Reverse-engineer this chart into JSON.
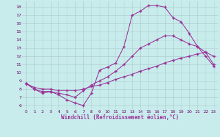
{
  "xlabel": "Windchill (Refroidissement éolien,°C)",
  "bg_color": "#c8ecec",
  "line_color": "#993399",
  "grid_color": "#b0cece",
  "xlim": [
    -0.5,
    23.5
  ],
  "ylim": [
    5.5,
    18.7
  ],
  "xticks": [
    0,
    1,
    2,
    3,
    4,
    5,
    6,
    7,
    8,
    9,
    10,
    11,
    12,
    13,
    14,
    15,
    16,
    17,
    18,
    19,
    20,
    21,
    22,
    23
  ],
  "yticks": [
    6,
    7,
    8,
    9,
    10,
    11,
    12,
    13,
    14,
    15,
    16,
    17,
    18
  ],
  "line1": {
    "x": [
      0,
      1,
      2,
      3,
      4,
      5,
      6,
      7,
      8,
      9,
      10,
      11,
      12,
      13,
      14,
      15,
      16,
      17,
      18,
      19,
      20,
      21,
      22,
      23
    ],
    "y": [
      8.7,
      8.0,
      7.5,
      7.7,
      7.3,
      6.7,
      6.3,
      6.0,
      7.5,
      10.3,
      10.7,
      11.2,
      13.2,
      17.0,
      17.5,
      18.2,
      18.2,
      18.0,
      16.7,
      16.2,
      14.8,
      13.2,
      12.0,
      10.8
    ]
  },
  "line2": {
    "x": [
      0,
      1,
      2,
      3,
      4,
      5,
      6,
      7,
      8,
      9,
      10,
      11,
      12,
      13,
      14,
      15,
      16,
      17,
      18,
      19,
      20,
      21,
      22,
      23
    ],
    "y": [
      8.7,
      8.0,
      7.7,
      7.7,
      7.5,
      7.3,
      7.0,
      7.8,
      8.5,
      9.0,
      9.5,
      10.2,
      11.0,
      12.0,
      13.0,
      13.5,
      14.0,
      14.5,
      14.5,
      14.0,
      13.5,
      13.2,
      12.5,
      12.0
    ]
  },
  "line3": {
    "x": [
      0,
      1,
      2,
      3,
      4,
      5,
      6,
      7,
      8,
      9,
      10,
      11,
      12,
      13,
      14,
      15,
      16,
      17,
      18,
      19,
      20,
      21,
      22,
      23
    ],
    "y": [
      8.7,
      8.2,
      8.0,
      8.0,
      7.8,
      7.8,
      7.8,
      8.0,
      8.3,
      8.5,
      8.8,
      9.2,
      9.5,
      9.8,
      10.2,
      10.5,
      10.8,
      11.2,
      11.5,
      11.8,
      12.0,
      12.3,
      12.5,
      11.0
    ]
  }
}
